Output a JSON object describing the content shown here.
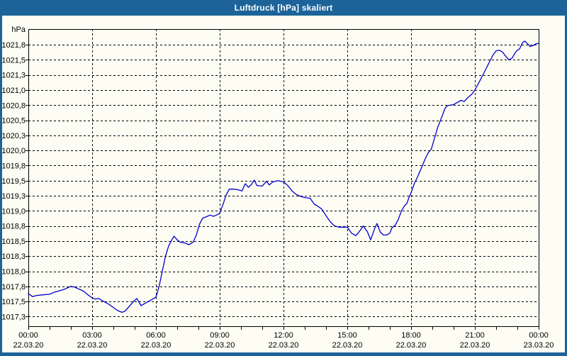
{
  "window": {
    "title": "Luftdruck [hPa] skaliert",
    "titlebar_color": "#1B6398",
    "border_color": "#1B6398",
    "content_background": "#FDFDF4"
  },
  "chart_data": {
    "type": "line",
    "title": "Luftdruck [hPa] skaliert",
    "ylabel": "hPa",
    "xlabel": "",
    "grid": true,
    "grid_style": "dashed",
    "grid_color": "#000000",
    "line_color": "#0000CC",
    "axis_color": "#000000",
    "ylim": [
      1017.09,
      1022.01
    ],
    "xlim_hours": [
      0,
      24
    ],
    "minor_x_tick_every_hours": 1,
    "y_ticks": [
      {
        "value": 1021.75,
        "label": "1021,8"
      },
      {
        "value": 1021.5,
        "label": "1021,5"
      },
      {
        "value": 1021.25,
        "label": "1021,3"
      },
      {
        "value": 1021.0,
        "label": "1021,0"
      },
      {
        "value": 1020.75,
        "label": "1020,8"
      },
      {
        "value": 1020.5,
        "label": "1020,5"
      },
      {
        "value": 1020.25,
        "label": "1020,3"
      },
      {
        "value": 1020.0,
        "label": "1020,0"
      },
      {
        "value": 1019.75,
        "label": "1019,8"
      },
      {
        "value": 1019.5,
        "label": "1019,5"
      },
      {
        "value": 1019.25,
        "label": "1019,3"
      },
      {
        "value": 1019.0,
        "label": "1019,0"
      },
      {
        "value": 1018.75,
        "label": "1018,8"
      },
      {
        "value": 1018.5,
        "label": "1018,5"
      },
      {
        "value": 1018.25,
        "label": "1018,3"
      },
      {
        "value": 1018.0,
        "label": "1018,0"
      },
      {
        "value": 1017.75,
        "label": "1017,8"
      },
      {
        "value": 1017.5,
        "label": "1017,5"
      },
      {
        "value": 1017.25,
        "label": "1017,3"
      }
    ],
    "x_ticks": [
      {
        "hour": 0,
        "time": "00:00",
        "date": "22.03.20"
      },
      {
        "hour": 3,
        "time": "03:00",
        "date": "22.03.20"
      },
      {
        "hour": 6,
        "time": "06:00",
        "date": "22.03.20"
      },
      {
        "hour": 9,
        "time": "09:00",
        "date": "22.03.20"
      },
      {
        "hour": 12,
        "time": "12:00",
        "date": "22.03.20"
      },
      {
        "hour": 15,
        "time": "15:00",
        "date": "22.03.20"
      },
      {
        "hour": 18,
        "time": "18:00",
        "date": "22.03.20"
      },
      {
        "hour": 21,
        "time": "21:00",
        "date": "22.03.20"
      },
      {
        "hour": 24,
        "time": "00:00",
        "date": "23.03.20"
      }
    ],
    "series": [
      {
        "name": "Luftdruck",
        "points": [
          [
            0,
            1017.63
          ],
          [
            0.2,
            1017.58
          ],
          [
            0.4,
            1017.6
          ],
          [
            0.7,
            1017.61
          ],
          [
            1,
            1017.62
          ],
          [
            1.2,
            1017.65
          ],
          [
            1.5,
            1017.68
          ],
          [
            1.75,
            1017.71
          ],
          [
            2,
            1017.75
          ],
          [
            2.15,
            1017.74
          ],
          [
            2.35,
            1017.71
          ],
          [
            2.6,
            1017.67
          ],
          [
            2.8,
            1017.61
          ],
          [
            3,
            1017.56
          ],
          [
            3.15,
            1017.54
          ],
          [
            3.3,
            1017.55
          ],
          [
            3.45,
            1017.52
          ],
          [
            3.6,
            1017.49
          ],
          [
            3.8,
            1017.45
          ],
          [
            4,
            1017.4
          ],
          [
            4.2,
            1017.35
          ],
          [
            4.4,
            1017.32
          ],
          [
            4.55,
            1017.34
          ],
          [
            4.75,
            1017.42
          ],
          [
            4.95,
            1017.5
          ],
          [
            5.1,
            1017.55
          ],
          [
            5.3,
            1017.43
          ],
          [
            5.5,
            1017.47
          ],
          [
            5.7,
            1017.51
          ],
          [
            5.85,
            1017.54
          ],
          [
            6,
            1017.57
          ],
          [
            6.15,
            1017.75
          ],
          [
            6.3,
            1018.0
          ],
          [
            6.45,
            1018.25
          ],
          [
            6.6,
            1018.42
          ],
          [
            6.75,
            1018.52
          ],
          [
            6.85,
            1018.58
          ],
          [
            7,
            1018.52
          ],
          [
            7.15,
            1018.48
          ],
          [
            7.35,
            1018.47
          ],
          [
            7.55,
            1018.44
          ],
          [
            7.75,
            1018.48
          ],
          [
            7.9,
            1018.6
          ],
          [
            8.05,
            1018.78
          ],
          [
            8.2,
            1018.88
          ],
          [
            8.35,
            1018.9
          ],
          [
            8.55,
            1018.93
          ],
          [
            8.7,
            1018.91
          ],
          [
            8.85,
            1018.93
          ],
          [
            9,
            1018.96
          ],
          [
            9.15,
            1019.1
          ],
          [
            9.3,
            1019.26
          ],
          [
            9.45,
            1019.36
          ],
          [
            9.65,
            1019.36
          ],
          [
            9.85,
            1019.35
          ],
          [
            10.05,
            1019.33
          ],
          [
            10.2,
            1019.45
          ],
          [
            10.35,
            1019.39
          ],
          [
            10.5,
            1019.44
          ],
          [
            10.62,
            1019.51
          ],
          [
            10.75,
            1019.42
          ],
          [
            11,
            1019.41
          ],
          [
            11.2,
            1019.49
          ],
          [
            11.33,
            1019.43
          ],
          [
            11.5,
            1019.48
          ],
          [
            11.75,
            1019.5
          ],
          [
            12,
            1019.48
          ],
          [
            12.2,
            1019.42
          ],
          [
            12.4,
            1019.33
          ],
          [
            12.6,
            1019.27
          ],
          [
            12.8,
            1019.24
          ],
          [
            13,
            1019.22
          ],
          [
            13.25,
            1019.21
          ],
          [
            13.45,
            1019.11
          ],
          [
            13.6,
            1019.08
          ],
          [
            13.8,
            1019.03
          ],
          [
            14,
            1018.92
          ],
          [
            14.2,
            1018.82
          ],
          [
            14.4,
            1018.75
          ],
          [
            14.6,
            1018.73
          ],
          [
            14.8,
            1018.73
          ],
          [
            15,
            1018.73
          ],
          [
            15.2,
            1018.63
          ],
          [
            15.4,
            1018.59
          ],
          [
            15.55,
            1018.65
          ],
          [
            15.75,
            1018.75
          ],
          [
            15.95,
            1018.65
          ],
          [
            16.1,
            1018.52
          ],
          [
            16.3,
            1018.72
          ],
          [
            16.4,
            1018.79
          ],
          [
            16.55,
            1018.65
          ],
          [
            16.7,
            1018.6
          ],
          [
            16.85,
            1018.6
          ],
          [
            17,
            1018.63
          ],
          [
            17.1,
            1018.72
          ],
          [
            17.25,
            1018.76
          ],
          [
            17.4,
            1018.86
          ],
          [
            17.55,
            1019.0
          ],
          [
            17.7,
            1019.09
          ],
          [
            17.8,
            1019.12
          ],
          [
            17.9,
            1019.22
          ],
          [
            18,
            1019.3
          ],
          [
            18.15,
            1019.45
          ],
          [
            18.3,
            1019.56
          ],
          [
            18.5,
            1019.72
          ],
          [
            18.65,
            1019.85
          ],
          [
            18.8,
            1019.96
          ],
          [
            18.95,
            1020.02
          ],
          [
            19.1,
            1020.2
          ],
          [
            19.25,
            1020.38
          ],
          [
            19.45,
            1020.56
          ],
          [
            19.6,
            1020.7
          ],
          [
            19.7,
            1020.74
          ],
          [
            19.85,
            1020.75
          ],
          [
            20,
            1020.76
          ],
          [
            20.15,
            1020.79
          ],
          [
            20.35,
            1020.83
          ],
          [
            20.5,
            1020.81
          ],
          [
            20.65,
            1020.87
          ],
          [
            20.85,
            1020.93
          ],
          [
            21,
            1021.0
          ],
          [
            21.2,
            1021.13
          ],
          [
            21.45,
            1021.3
          ],
          [
            21.65,
            1021.44
          ],
          [
            21.85,
            1021.58
          ],
          [
            22,
            1021.65
          ],
          [
            22.15,
            1021.66
          ],
          [
            22.3,
            1021.63
          ],
          [
            22.45,
            1021.56
          ],
          [
            22.6,
            1021.5
          ],
          [
            22.75,
            1021.53
          ],
          [
            22.9,
            1021.62
          ],
          [
            23,
            1021.66
          ],
          [
            23.1,
            1021.68
          ],
          [
            23.25,
            1021.79
          ],
          [
            23.35,
            1021.81
          ],
          [
            23.5,
            1021.76
          ],
          [
            23.6,
            1021.72
          ],
          [
            23.75,
            1021.74
          ],
          [
            23.9,
            1021.77
          ],
          [
            24,
            1021.77
          ]
        ]
      }
    ]
  }
}
